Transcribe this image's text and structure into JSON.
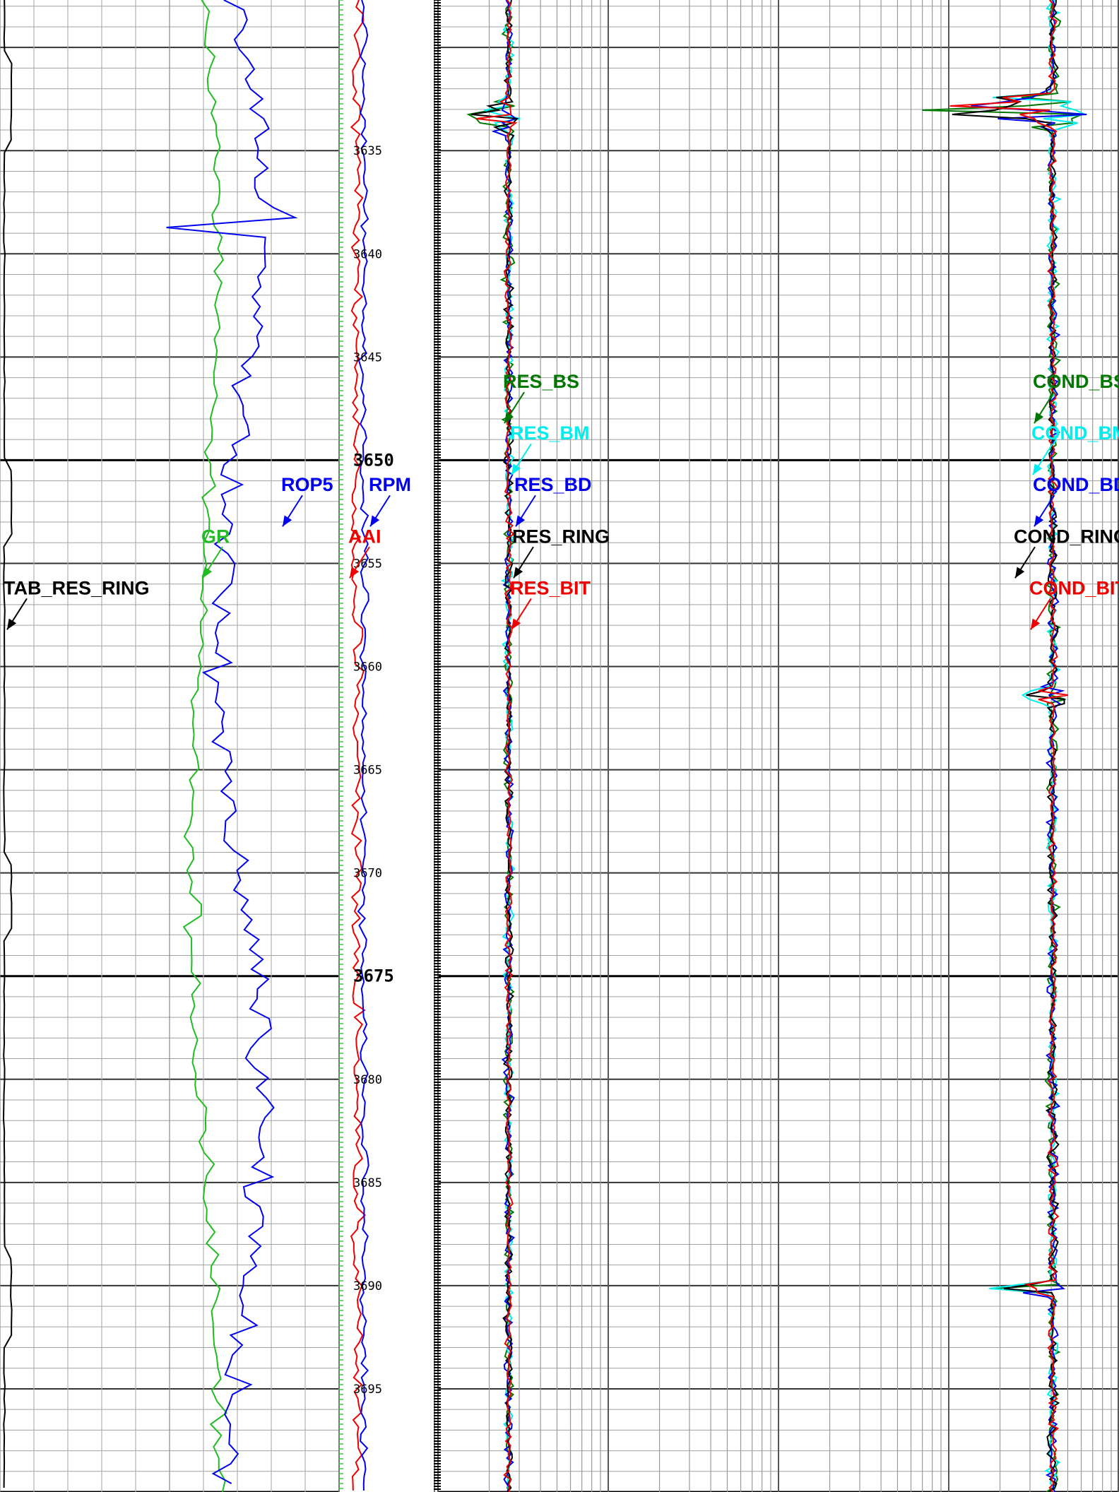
{
  "chart_data": {
    "type": "line",
    "subtype": "well-log",
    "depth_range": [
      3627.7,
      3700
    ],
    "depth_ticks": [
      {
        "depth": 3635,
        "label": "3635",
        "major": false
      },
      {
        "depth": 3640,
        "label": "3640",
        "major": false
      },
      {
        "depth": 3645,
        "label": "3645",
        "major": false
      },
      {
        "depth": 3650,
        "label": "3650",
        "major": true
      },
      {
        "depth": 3655,
        "label": "3655",
        "major": false
      },
      {
        "depth": 3660,
        "label": "3660",
        "major": false
      },
      {
        "depth": 3665,
        "label": "3665",
        "major": false
      },
      {
        "depth": 3670,
        "label": "3670",
        "major": false
      },
      {
        "depth": 3675,
        "label": "3675",
        "major": true
      },
      {
        "depth": 3680,
        "label": "3680",
        "major": false
      },
      {
        "depth": 3685,
        "label": "3685",
        "major": false
      },
      {
        "depth": 3690,
        "label": "3690",
        "major": false
      },
      {
        "depth": 3695,
        "label": "3695",
        "major": false
      }
    ],
    "tracks": [
      {
        "name": "track-1",
        "scale": "linear",
        "grid": true,
        "curves": [
          {
            "name": "TAB_RES_RING",
            "color": "#000000"
          },
          {
            "name": "GR",
            "color": "#22bb22"
          },
          {
            "name": "ROP5",
            "color": "#0000ee"
          }
        ]
      },
      {
        "name": "depth-track",
        "curves": [
          {
            "name": "AAI",
            "color": "#ee0000"
          },
          {
            "name": "RPM",
            "color": "#0000ee"
          }
        ]
      },
      {
        "name": "track-2",
        "scale": "log",
        "grid": true,
        "curves": [
          {
            "name": "RES_BS",
            "color": "#007700"
          },
          {
            "name": "RES_BM",
            "color": "#00eeee"
          },
          {
            "name": "RES_BD",
            "color": "#0000ee"
          },
          {
            "name": "RES_RING",
            "color": "#000000"
          },
          {
            "name": "RES_BIT",
            "color": "#ee0000"
          },
          {
            "name": "COND_BS",
            "color": "#007700"
          },
          {
            "name": "COND_BM",
            "color": "#00eeee"
          },
          {
            "name": "COND_BD",
            "color": "#0000ee"
          },
          {
            "name": "COND_RING",
            "color": "#000000"
          },
          {
            "name": "COND_BIT",
            "color": "#ee0000"
          }
        ]
      }
    ],
    "annotations": [
      {
        "text": "TAB_RES_RING",
        "color": "#000000",
        "depth": 3656.5
      },
      {
        "text": "GR",
        "color": "#22bb22",
        "depth": 3654.0
      },
      {
        "text": "ROP5",
        "color": "#0000ee",
        "depth": 3651.5
      },
      {
        "text": "RPM",
        "color": "#0000ee",
        "depth": 3651.5
      },
      {
        "text": "AAI",
        "color": "#ee0000",
        "depth": 3654.0
      },
      {
        "text": "RES_BS",
        "color": "#007700",
        "depth": 3646.5
      },
      {
        "text": "RES_BM",
        "color": "#00eeee",
        "depth": 3649.0
      },
      {
        "text": "RES_BD",
        "color": "#0000ee",
        "depth": 3651.5
      },
      {
        "text": "RES_RING",
        "color": "#000000",
        "depth": 3654.0
      },
      {
        "text": "RES_BIT",
        "color": "#ee0000",
        "depth": 3656.5
      },
      {
        "text": "COND_BS",
        "color": "#007700",
        "depth": 3646.5
      },
      {
        "text": "COND_BM",
        "color": "#00eeee",
        "depth": 3649.0
      },
      {
        "text": "COND_BD",
        "color": "#0000ee",
        "depth": 3651.5
      },
      {
        "text": "COND_RING",
        "color": "#000000",
        "depth": 3654.0
      },
      {
        "text": "COND_BIT",
        "color": "#ee0000",
        "depth": 3656.5
      }
    ]
  }
}
